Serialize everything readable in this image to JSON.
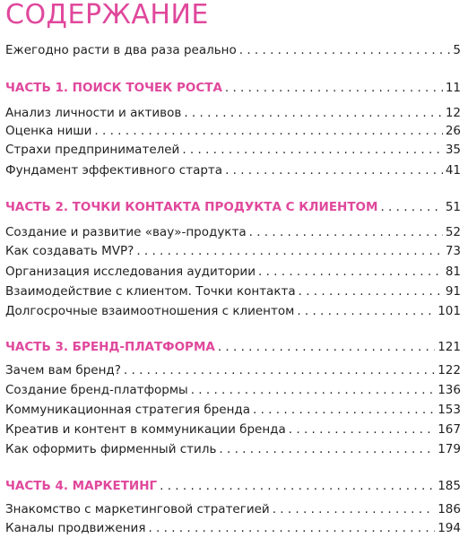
{
  "title": "СОДЕРЖАНИЕ",
  "accent_color": "#e0489c",
  "entries": [
    {
      "label": "Ежегодно расти в два раза реально",
      "page": "5"
    },
    {
      "label": "ЧАСТЬ 1. ПОИСК ТОЧЕК РОСТА",
      "page": "11"
    },
    {
      "label": "Анализ личности и активов",
      "page": "12"
    },
    {
      "label": "Оценка ниши",
      "page": "26"
    },
    {
      "label": "Страхи предпринимателей",
      "page": "35"
    },
    {
      "label": "Фундамент эффективного старта",
      "page": "41"
    },
    {
      "label": "ЧАСТЬ 2. ТОЧКИ КОНТАКТА ПРОДУКТА С КЛИЕНТОМ",
      "page": "51"
    },
    {
      "label": "Создание и развитие «вау»-продукта",
      "page": "52"
    },
    {
      "label": "Как создавать MVP?",
      "page": "73"
    },
    {
      "label": "Организация исследования аудитории",
      "page": "81"
    },
    {
      "label": "Взаимодействие с клиентом. Точки контакта",
      "page": "91"
    },
    {
      "label": "Долгосрочные взаимоотношения с клиентом",
      "page": "101"
    },
    {
      "label": "ЧАСТЬ 3. БРЕНД-ПЛАТФОРМА",
      "page": "121"
    },
    {
      "label": "Зачем вам бренд?",
      "page": "122"
    },
    {
      "label": "Создание бренд-платформы",
      "page": "136"
    },
    {
      "label": "Коммуникационная стратегия бренда",
      "page": "153"
    },
    {
      "label": "Креатив и контент в коммуникации бренда",
      "page": "167"
    },
    {
      "label": "Как оформить фирменный стиль",
      "page": "179"
    },
    {
      "label": "ЧАСТЬ 4. МАРКЕТИНГ",
      "page": "185"
    },
    {
      "label": "Знакомство с маркетинговой стратегией",
      "page": "186"
    },
    {
      "label": "Каналы продвижения",
      "page": "194"
    }
  ]
}
